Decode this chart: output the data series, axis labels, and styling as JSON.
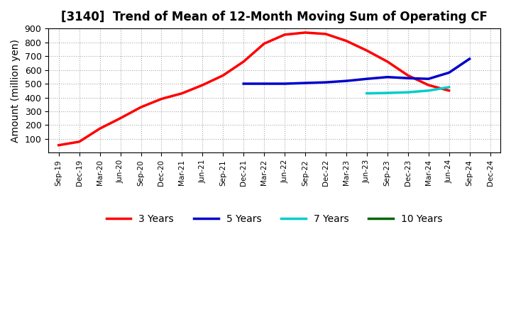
{
  "title": "[3140]  Trend of Mean of 12-Month Moving Sum of Operating CF",
  "ylabel": "Amount (million yen)",
  "ylim": [
    0,
    900
  ],
  "yticks": [
    100,
    200,
    300,
    400,
    500,
    600,
    700,
    800,
    900
  ],
  "background_color": "#ffffff",
  "grid_color": "#aaaaaa",
  "x_labels": [
    "Sep-19",
    "Dec-19",
    "Mar-20",
    "Jun-20",
    "Sep-20",
    "Dec-20",
    "Mar-21",
    "Jun-21",
    "Sep-21",
    "Dec-21",
    "Mar-22",
    "Jun-22",
    "Sep-22",
    "Dec-22",
    "Mar-23",
    "Jun-23",
    "Sep-23",
    "Dec-23",
    "Mar-24",
    "Jun-24",
    "Sep-24",
    "Dec-24"
  ],
  "series": [
    {
      "name": "3 Years",
      "color": "#ff0000",
      "linewidth": 2.5,
      "x": [
        0,
        1,
        2,
        3,
        4,
        5,
        6,
        7,
        8,
        9,
        10,
        11,
        12,
        13,
        14,
        15,
        16,
        17,
        18,
        19
      ],
      "y": [
        55,
        80,
        175,
        250,
        330,
        390,
        430,
        490,
        560,
        660,
        790,
        855,
        870,
        860,
        810,
        740,
        660,
        560,
        490,
        450
      ]
    },
    {
      "name": "5 Years",
      "color": "#0000cc",
      "linewidth": 2.5,
      "x": [
        9,
        10,
        11,
        12,
        13,
        14,
        15,
        16,
        17,
        18,
        19,
        20
      ],
      "y": [
        500,
        500,
        500,
        505,
        510,
        520,
        535,
        548,
        540,
        535,
        580,
        680
      ]
    },
    {
      "name": "7 Years",
      "color": "#00cccc",
      "linewidth": 2.5,
      "x": [
        15,
        16,
        17,
        18,
        19
      ],
      "y": [
        430,
        433,
        438,
        450,
        475
      ]
    },
    {
      "name": "10 Years",
      "color": "#006600",
      "linewidth": 2.5,
      "x": [],
      "y": []
    }
  ]
}
